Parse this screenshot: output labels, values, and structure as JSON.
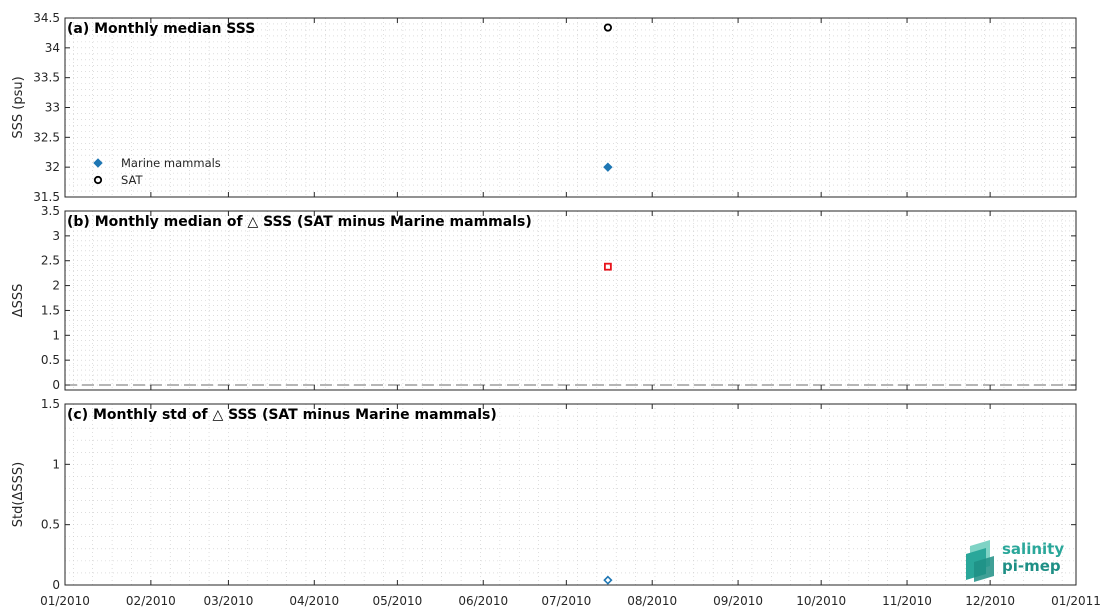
{
  "logo": {
    "line1": "salinity",
    "line2": "pi-mep"
  },
  "chart_data": [
    {
      "type": "scatter",
      "title": "(a) Monthly median SSS",
      "ylabel": "SSS (psu)",
      "xlim": [
        "2010-01-01",
        "2011-01-01"
      ],
      "ylim": [
        31.5,
        34.5
      ],
      "yticks": [
        31.5,
        32,
        32.5,
        33,
        33.5,
        34,
        34.5
      ],
      "ytick_labels": [
        "31.5",
        "32",
        "32.5",
        "33",
        "33.5",
        "34",
        "34.5"
      ],
      "grid": true,
      "legend_position": "lower-left",
      "series": [
        {
          "name": "Marine mammals",
          "marker": "filled-diamond",
          "color": "#1f77b4",
          "x": [
            "2010-07-16"
          ],
          "y": [
            32.0
          ]
        },
        {
          "name": "SAT",
          "marker": "open-circle",
          "color": "#000000",
          "x": [
            "2010-07-16"
          ],
          "y": [
            34.34
          ]
        }
      ]
    },
    {
      "type": "scatter",
      "title": "(b) Monthly median of △ SSS (SAT minus Marine mammals)",
      "ylabel": "ΔSSS",
      "xlim": [
        "2010-01-01",
        "2011-01-01"
      ],
      "ylim": [
        -0.1,
        3.5
      ],
      "yticks": [
        0,
        0.5,
        1,
        1.5,
        2,
        2.5,
        3,
        3.5
      ],
      "ytick_labels": [
        "0",
        "0.5",
        "1",
        "1.5",
        "2",
        "2.5",
        "3",
        "3.5"
      ],
      "zero_line": true,
      "grid": true,
      "series": [
        {
          "marker": "open-square",
          "color": "#e8141c",
          "x": [
            "2010-07-16"
          ],
          "y": [
            2.38
          ]
        }
      ]
    },
    {
      "type": "scatter",
      "title": "(c) Monthly std of △ SSS (SAT minus Marine mammals)",
      "ylabel": "Std(ΔSSS)",
      "xlim": [
        "2010-01-01",
        "2011-01-01"
      ],
      "ylim": [
        0,
        1.5
      ],
      "yticks": [
        0,
        0.5,
        1,
        1.5
      ],
      "ytick_labels": [
        "0",
        "0.5",
        "1",
        "1.5"
      ],
      "grid": true,
      "series": [
        {
          "marker": "open-diamond",
          "color": "#1f77b4",
          "x": [
            "2010-07-16"
          ],
          "y": [
            0.04
          ]
        }
      ]
    }
  ],
  "x_ticks": [
    "2010-01-01",
    "2010-02-01",
    "2010-03-01",
    "2010-04-01",
    "2010-05-01",
    "2010-06-01",
    "2010-07-01",
    "2010-08-01",
    "2010-09-01",
    "2010-10-01",
    "2010-11-01",
    "2010-12-01",
    "2011-01-01"
  ],
  "x_tick_labels": [
    "01/2010",
    "02/2010",
    "03/2010",
    "04/2010",
    "05/2010",
    "06/2010",
    "07/2010",
    "08/2010",
    "09/2010",
    "10/2010",
    "11/2010",
    "12/2010",
    "01/2011"
  ]
}
